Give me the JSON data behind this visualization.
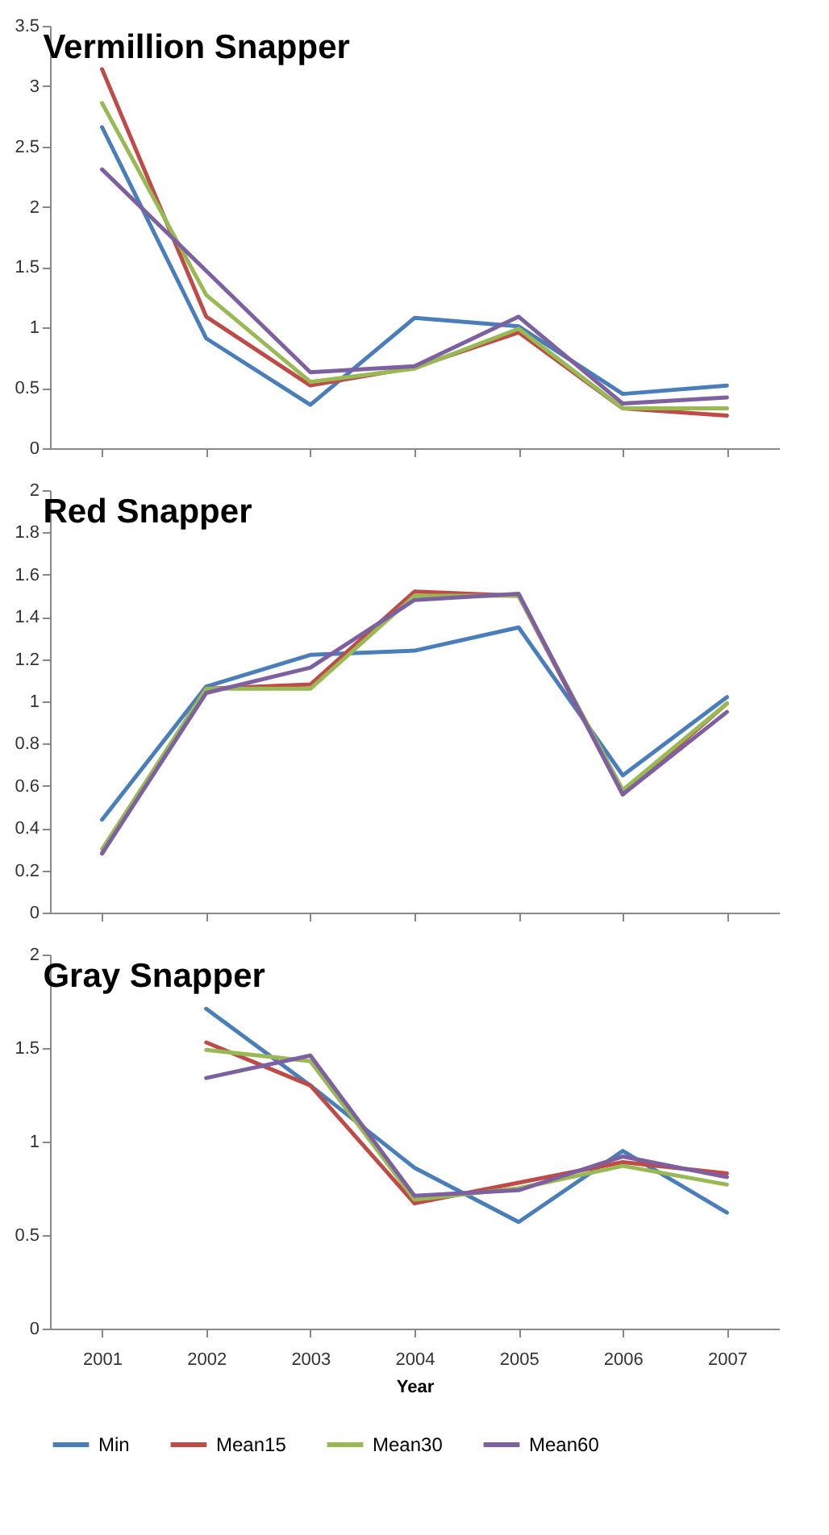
{
  "chart_data": [
    {
      "type": "line",
      "title": "Vermillion Snapper",
      "categories": [
        "2001",
        "2002",
        "2003",
        "2004",
        "2005",
        "2006",
        "2007"
      ],
      "ylim": [
        0,
        3.5
      ],
      "yticks": [
        0,
        0.5,
        1,
        1.5,
        2,
        2.5,
        3,
        3.5
      ],
      "tick_labels": "y",
      "series": [
        {
          "color": "#4a7ebb",
          "values": [
            2.66,
            0.91,
            0.36,
            1.08,
            1.01,
            0.45,
            0.52
          ]
        },
        {
          "color": "#be4b48",
          "values": [
            3.14,
            1.09,
            0.52,
            0.67,
            0.96,
            0.33,
            0.27
          ]
        },
        {
          "color": "#98b954",
          "values": [
            2.86,
            1.27,
            0.55,
            0.66,
            0.99,
            0.33,
            0.33
          ]
        },
        {
          "color": "#7d60a0",
          "values": [
            2.31,
            1.47,
            0.63,
            0.68,
            1.09,
            0.37,
            0.42
          ]
        }
      ]
    },
    {
      "type": "line",
      "title": "Red Snapper",
      "categories": [
        "2001",
        "2002",
        "2003",
        "2004",
        "2005",
        "2006",
        "2007"
      ],
      "ylim": [
        0,
        2
      ],
      "yticks": [
        0,
        0.2,
        0.4,
        0.6,
        0.8,
        1,
        1.2,
        1.4,
        1.6,
        1.8,
        2
      ],
      "tick_labels": "y",
      "series": [
        {
          "color": "#4a7ebb",
          "values": [
            0.44,
            1.07,
            1.22,
            1.24,
            1.35,
            0.65,
            1.02
          ]
        },
        {
          "color": "#be4b48",
          "values": [
            0.28,
            1.06,
            1.08,
            1.52,
            1.5,
            0.56,
            0.99
          ]
        },
        {
          "color": "#98b954",
          "values": [
            0.3,
            1.06,
            1.06,
            1.5,
            1.5,
            0.58,
            0.99
          ]
        },
        {
          "color": "#7d60a0",
          "values": [
            0.28,
            1.04,
            1.16,
            1.48,
            1.51,
            0.56,
            0.95
          ]
        }
      ]
    },
    {
      "type": "line",
      "title": "Gray Snapper",
      "xlabel": "Year",
      "categories": [
        "2001",
        "2002",
        "2003",
        "2004",
        "2005",
        "2006",
        "2007"
      ],
      "ylim": [
        0,
        2
      ],
      "yticks": [
        0,
        0.5,
        1,
        1.5,
        2
      ],
      "legend": "bottom",
      "series": [
        {
          "name": "Min",
          "color": "#4a7ebb",
          "values": [
            null,
            1.71,
            1.3,
            0.86,
            0.57,
            0.95,
            0.62
          ]
        },
        {
          "name": "Mean15",
          "color": "#be4b48",
          "values": [
            null,
            1.53,
            1.3,
            0.67,
            0.78,
            0.89,
            0.83
          ]
        },
        {
          "name": "Mean30",
          "color": "#98b954",
          "values": [
            null,
            1.49,
            1.43,
            0.69,
            0.75,
            0.87,
            0.77
          ]
        },
        {
          "name": "Mean60",
          "color": "#7d60a0",
          "values": [
            null,
            1.34,
            1.46,
            0.71,
            0.74,
            0.92,
            0.81
          ]
        }
      ]
    }
  ]
}
